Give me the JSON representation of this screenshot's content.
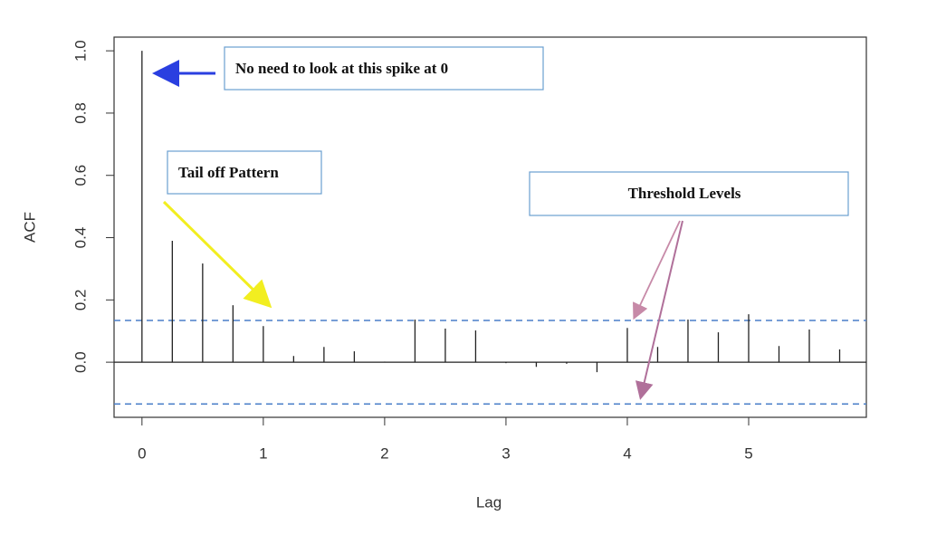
{
  "chart_data": {
    "type": "acf",
    "x_label": "Lag",
    "y_label": "ACF",
    "x": [
      0,
      0.25,
      0.5,
      0.75,
      1,
      1.25,
      1.5,
      1.75,
      2,
      2.25,
      2.5,
      2.75,
      3,
      3.25,
      3.5,
      3.75,
      4,
      4.25,
      4.5,
      4.75,
      5,
      5.25,
      5.5,
      5.75
    ],
    "values": [
      1.0,
      0.39,
      0.317,
      0.183,
      0.116,
      0.02,
      0.049,
      0.035,
      0.002,
      0.137,
      0.108,
      0.102,
      -0.003,
      -0.015,
      -0.005,
      -0.032,
      0.11,
      0.049,
      0.137,
      0.096,
      0.154,
      0.052,
      0.105,
      0.041
    ],
    "color": "#222222",
    "thresholds": [
      0.134,
      -0.134
    ],
    "threshold_color": "#4a7fc8",
    "xlim": [
      -0.23,
      5.97
    ],
    "ylim": [
      -0.177,
      1.044
    ],
    "xticks": [
      0,
      1,
      2,
      3,
      4,
      5
    ],
    "yticks": [
      {
        "value": 0,
        "label": "0.0"
      },
      0.2,
      0.4,
      0.6,
      0.8,
      {
        "value": 1,
        "label": "1.0"
      }
    ],
    "annotations": [
      {
        "text": "No need to look at this spike at 0"
      },
      {
        "text": "Tail off Pattern"
      },
      {
        "text": "Threshold Levels"
      }
    ]
  }
}
